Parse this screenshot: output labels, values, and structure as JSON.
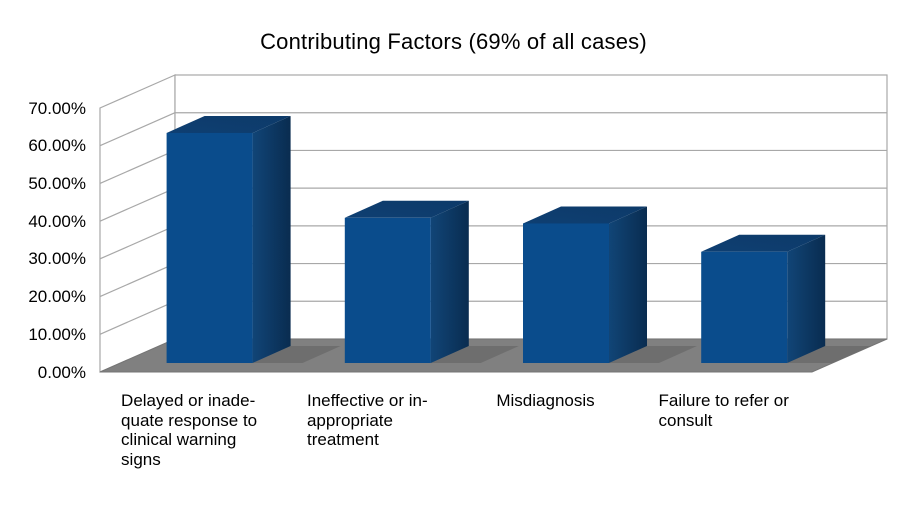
{
  "chart_data": {
    "type": "bar",
    "style": "3d-column",
    "title": "Contributing Factors (69% of all cases)",
    "categories": [
      "Delayed or inadequate response to clinical warning signs",
      "Ineffective or inappropriate treatment",
      "Misdiagnosis",
      "Failure to refer or consult"
    ],
    "category_label_lines": [
      [
        "Delayed or inade-",
        "quate response to",
        "clinical warning",
        "signs"
      ],
      [
        "Ineffective or in-",
        "appropriate",
        "treatment"
      ],
      [
        "Misdiagnosis"
      ],
      [
        "Failure to refer or",
        "consult"
      ]
    ],
    "values": [
      61,
      38.5,
      37,
      29.5
    ],
    "unit": "%",
    "xlabel": "",
    "ylabel": "",
    "ylim": [
      0,
      70
    ],
    "y_ticks": [
      0,
      10,
      20,
      30,
      40,
      50,
      60,
      70
    ],
    "y_tick_labels": [
      "0.00%",
      "10.00%",
      "20.00%",
      "30.00%",
      "40.00%",
      "50.00%",
      "60.00%",
      "70.00%"
    ],
    "grid": true,
    "legend": "none",
    "colors": {
      "bar_front": "#0A4C8C",
      "bar_top": "#0D3A69",
      "bar_side_light": "#114577",
      "bar_side_dark": "#092C50",
      "floor": "#808080",
      "floor_edge": "#757575",
      "shadow": "#6E6E6E",
      "wall_fill": "#FFFFFF",
      "wall_line": "#A8A8A8",
      "text": "#000000",
      "background": "#FFFFFF"
    }
  }
}
